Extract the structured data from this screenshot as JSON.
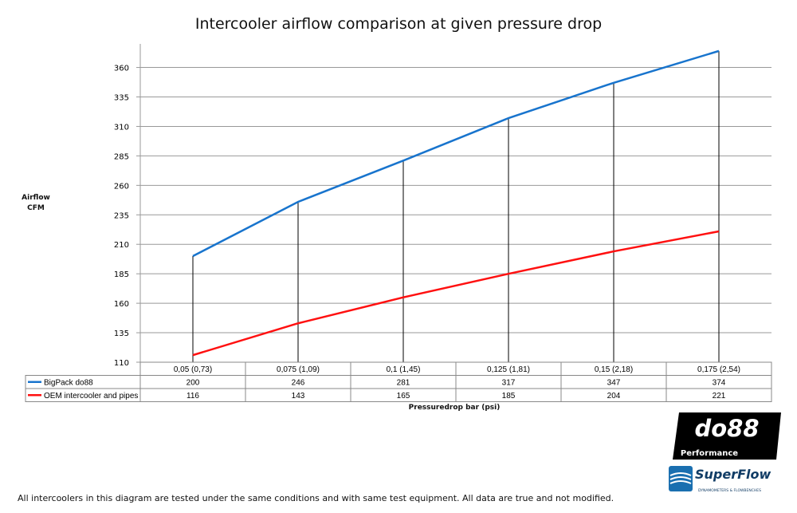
{
  "chart_data": {
    "type": "line",
    "title": "Intercooler airflow comparison at given pressure drop",
    "ylabel": [
      "Airflow",
      "CFM"
    ],
    "xlabel": "Pressuredrop bar (psi)",
    "categories": [
      "0,05 (0,73)",
      "0,075 (1,09)",
      "0,1 (1,45)",
      "0,125 (1,81)",
      "0,15 (2,18)",
      "0,175 (2,54)"
    ],
    "yticks": [
      110,
      135,
      160,
      185,
      210,
      235,
      260,
      285,
      310,
      335,
      360
    ],
    "ylim": [
      110,
      380
    ],
    "grid": true,
    "legend": "data-table",
    "series": [
      {
        "name": "BigPack do88",
        "color": "#1874CD",
        "values": [
          200,
          246,
          281,
          317,
          347,
          374
        ]
      },
      {
        "name": "OEM intercooler and pipes",
        "color": "#FF1010",
        "values": [
          116,
          143,
          165,
          185,
          204,
          221
        ]
      }
    ]
  },
  "footnote": "All intercoolers in this diagram are tested under the same conditions and with same test equipment. All data are true and not modified.",
  "logos": {
    "do88": "do88 Performance",
    "superflow": "SuperFlow"
  }
}
